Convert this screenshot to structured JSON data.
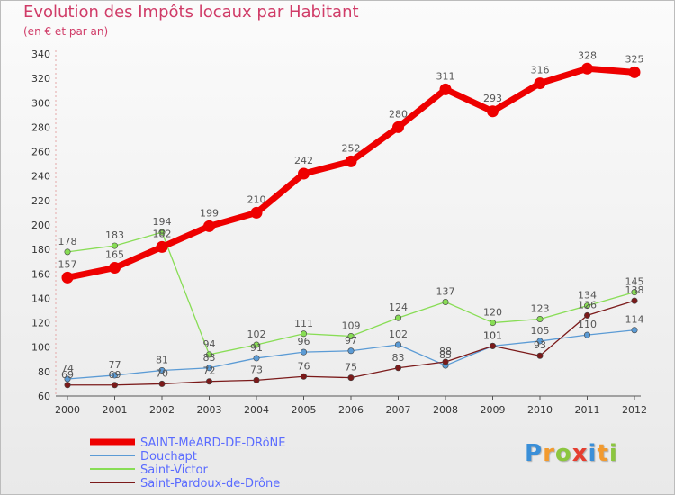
{
  "header": {
    "title": "Evolution des Impôts locaux par Habitant",
    "subtitle": "(en € et par an)"
  },
  "logo": {
    "text": "Proxiti",
    "letters": [
      "P",
      "r",
      "o",
      "x",
      "i",
      "t",
      "i"
    ],
    "colors": [
      "#3a8fd8",
      "#f29a2e",
      "#8cc63f",
      "#e53e30",
      "#3a8fd8",
      "#f29a2e",
      "#8cc63f"
    ]
  },
  "chart_data": {
    "type": "line",
    "title": "Evolution des Impôts locaux par Habitant",
    "subtitle": "(en € et par an)",
    "xlabel": "",
    "ylabel": "",
    "ylim": [
      60,
      340
    ],
    "yticks": [
      60,
      80,
      100,
      120,
      140,
      160,
      180,
      200,
      220,
      240,
      260,
      280,
      300,
      320,
      340
    ],
    "grid": false,
    "legend_position": "bottom-left",
    "categories": [
      "2000",
      "2001",
      "2002",
      "2003",
      "2004",
      "2005",
      "2006",
      "2007",
      "2008",
      "2009",
      "2010",
      "2011",
      "2012"
    ],
    "series": [
      {
        "name": "SAINT-MéARD-DE-DRôNE",
        "color": "#ee0000",
        "legend_text_color": "#5a6bff",
        "values": [
          157,
          165,
          182,
          199,
          210,
          242,
          252,
          280,
          311,
          293,
          316,
          328,
          325
        ],
        "labels": [
          "157",
          "165",
          "182",
          "199",
          "210",
          "242",
          "252",
          "280",
          "311",
          "293",
          "316",
          "328",
          "325"
        ]
      },
      {
        "name": "Douchapt",
        "color": "#5b9bd5",
        "legend_text_color": "#5a6bff",
        "values": [
          74,
          77,
          81,
          83,
          91,
          96,
          97,
          102,
          85,
          101,
          105,
          110,
          114
        ],
        "labels": [
          "74",
          "77",
          "81",
          "83",
          "91",
          "96",
          "97",
          "102",
          "85",
          "101",
          "105",
          "110",
          "114"
        ]
      },
      {
        "name": "Saint-Victor",
        "color": "#88dd55",
        "legend_text_color": "#5a6bff",
        "values": [
          178,
          183,
          194,
          94,
          102,
          111,
          109,
          124,
          137,
          120,
          123,
          134,
          145
        ],
        "labels": [
          "178",
          "183",
          "194",
          "94",
          "102",
          "111",
          "109",
          "124",
          "137",
          "120",
          "123",
          "134",
          "145"
        ]
      },
      {
        "name": "Saint-Pardoux-de-Drône",
        "color": "#7b1a1a",
        "legend_text_color": "#5a6bff",
        "values": [
          69,
          69,
          70,
          72,
          73,
          76,
          75,
          83,
          88,
          101,
          93,
          126,
          138
        ],
        "labels": [
          "69",
          "69",
          "70",
          "72",
          "73",
          "76",
          "75",
          "83",
          "88",
          "101",
          "93",
          "126",
          "138"
        ]
      }
    ]
  }
}
